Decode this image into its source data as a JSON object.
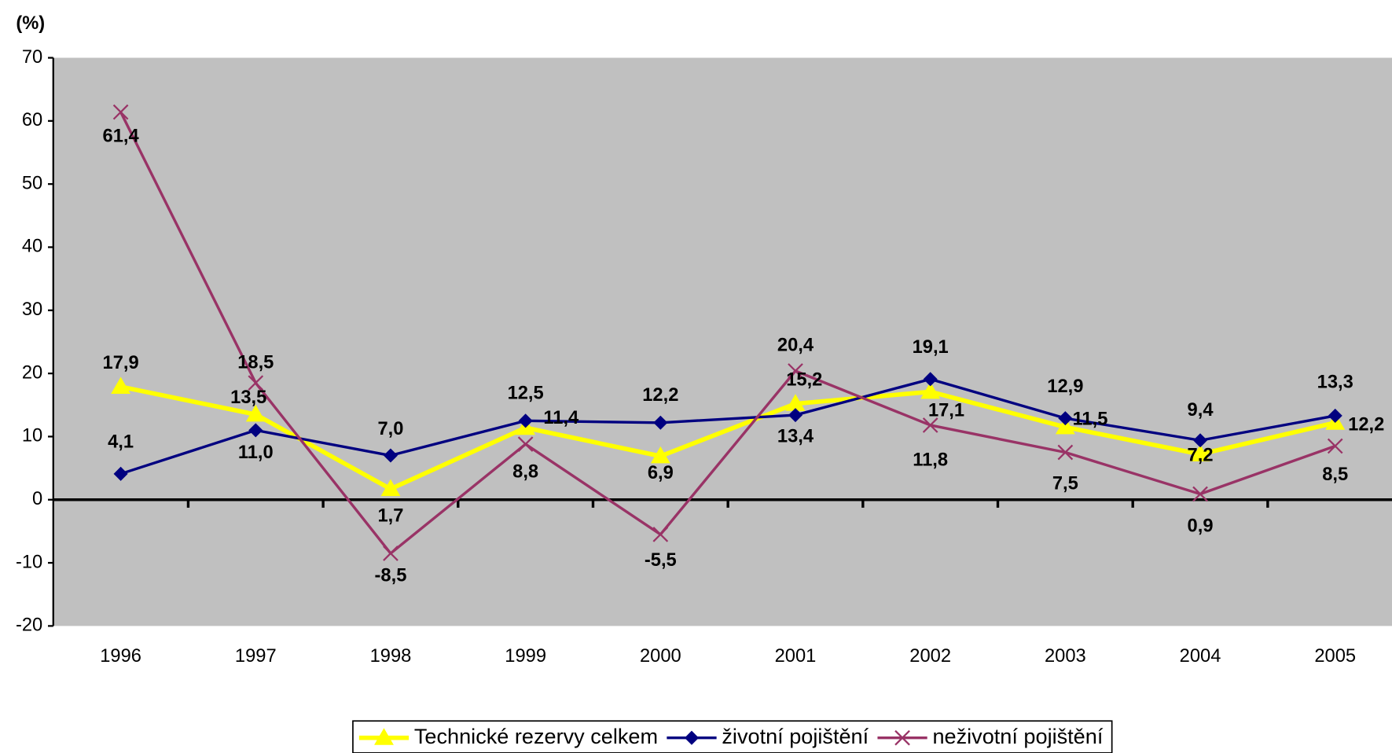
{
  "chart_data": {
    "type": "line",
    "y_axis_label": "(%)",
    "categories": [
      "1996",
      "1997",
      "1998",
      "1999",
      "2000",
      "2001",
      "2002",
      "2003",
      "2004",
      "2005"
    ],
    "series": [
      {
        "name": "Technické rezervy celkem",
        "color": "#ffff00",
        "marker": "triangle",
        "values": [
          17.9,
          13.5,
          1.7,
          11.4,
          6.9,
          15.2,
          17.1,
          11.5,
          7.2,
          12.2
        ],
        "value_labels": [
          "17,9",
          "13,5",
          "1,7",
          "11,4",
          "6,9",
          "15,2",
          "17,1",
          "11,5",
          "7,2",
          "12,2"
        ]
      },
      {
        "name": "životní pojištění",
        "color": "#000080",
        "marker": "diamond",
        "values": [
          4.1,
          11.0,
          7.0,
          12.5,
          12.2,
          13.4,
          19.1,
          12.9,
          9.4,
          13.3
        ],
        "value_labels": [
          "4,1",
          "11,0",
          "7,0",
          "12,5",
          "12,2",
          "13,4",
          "19,1",
          "12,9",
          "9,4",
          "13,3"
        ]
      },
      {
        "name": "neživotní pojištění",
        "color": "#993366",
        "marker": "x",
        "values": [
          61.4,
          18.5,
          -8.5,
          8.8,
          -5.5,
          20.4,
          11.8,
          7.5,
          0.9,
          8.5
        ],
        "value_labels": [
          "61,4",
          "18,5",
          "-8,5",
          "8,8",
          "-5,5",
          "20,4",
          "11,8",
          "7,5",
          "0,9",
          "8,5"
        ]
      }
    ],
    "ylim": [
      -20,
      70
    ],
    "yticks": [
      -20,
      -10,
      0,
      10,
      20,
      30,
      40,
      50,
      60,
      70
    ],
    "plot_background": "#c0c0c0",
    "legend": "bottom"
  }
}
